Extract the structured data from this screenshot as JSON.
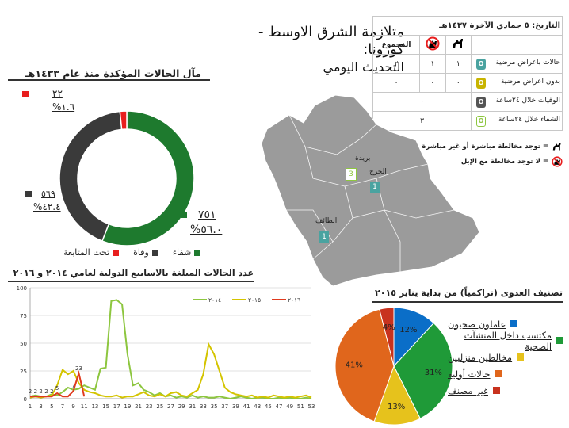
{
  "header": {
    "title_line1": "متلازمة الشرق الاوسط - كورونا:",
    "title_line2": "التحديث اليومي"
  },
  "donut": {
    "subtitle": "مآل الحالات المؤكدة منذ عام ١٤٣٣هـ",
    "annotations": {
      "monitoring": {
        "count": "٢٢",
        "pct": "%١.٦"
      },
      "death": {
        "count": "٥٦٩",
        "pct": "%٤٢.٤"
      },
      "recovered": {
        "count": "٧٥١",
        "pct": "%٥٦.٠"
      }
    },
    "legend": [
      "تحت المتابعة",
      "وفاة",
      "شفاء"
    ]
  },
  "summary_table": {
    "date_label": "التاريخ:  ٥ جمادي الآخرة ١٤٣٧هـ",
    "total_header": "المجموع",
    "camel_icon": "camel-icon",
    "no_camel_icon": "no-camel-icon",
    "rows": [
      {
        "label": "حالات باعراض مرضية",
        "camel": "١",
        "no_camel": "١",
        "total": "٢",
        "color": "#4aa3a0",
        "icon": "O"
      },
      {
        "label": "بدون اعراض مرضية",
        "camel": "٠",
        "no_camel": "٠",
        "total": "٠",
        "color": "#c8b400",
        "icon": "O"
      },
      {
        "label": "الوفيات خلال ٢٤ساعة",
        "merged": "٠",
        "color": "#555555",
        "icon": "O"
      },
      {
        "label": "الشفاء خلال ٢٤ساعة",
        "merged": "٣",
        "color": "#8dc63f",
        "icon": "O"
      }
    ],
    "key_camel": "= توجد مخالطة مباشرة أو غير مباشرة مع الإبل",
    "key_no_camel": "= لا توجد مخالطة مع الإبل"
  },
  "map": {
    "cities": [
      {
        "name": "بريدة",
        "count": "3",
        "color": "#8dc63f"
      },
      {
        "name": "الخرج",
        "count": "1",
        "color": "#4aa3a0"
      },
      {
        "name": "الطائف",
        "count": "1",
        "color": "#4aa3a0"
      }
    ]
  },
  "chart_data": [
    {
      "type": "pie",
      "title": "مآل الحالات المؤكدة منذ عام ١٤٣٣هـ",
      "categories": [
        "شفاء",
        "وفاة",
        "تحت المتابعة"
      ],
      "values": [
        751,
        569,
        22
      ],
      "percent": [
        56.0,
        42.4,
        1.6
      ],
      "colors": [
        "#1e7a2e",
        "#3a3a3a",
        "#e81e1e"
      ],
      "legend_position": "bottom"
    },
    {
      "type": "line",
      "title": "عدد الحالات المبلغة بالاسابيع الدولية لعامي ٢٠١٤ و ٢٠١٦",
      "x": [
        1,
        2,
        3,
        4,
        5,
        6,
        7,
        8,
        9,
        10,
        11,
        12,
        13,
        14,
        15,
        16,
        17,
        18,
        19,
        20,
        21,
        22,
        23,
        24,
        25,
        26,
        27,
        28,
        29,
        30,
        31,
        32,
        33,
        34,
        35,
        36,
        37,
        38,
        39,
        40,
        41,
        42,
        43,
        44,
        45,
        46,
        47,
        48,
        49,
        50,
        51,
        52,
        53
      ],
      "xticks": [
        1,
        3,
        5,
        7,
        9,
        11,
        13,
        15,
        17,
        19,
        21,
        23,
        25,
        27,
        29,
        31,
        33,
        35,
        37,
        39,
        41,
        43,
        45,
        47,
        49,
        51,
        53
      ],
      "ylim": [
        0,
        100
      ],
      "yticks": [
        0,
        25,
        50,
        75,
        100
      ],
      "legend_position": "top-right",
      "series": [
        {
          "name": "٢٠١٤",
          "color": "#8dc63f",
          "values": [
            2,
            3,
            2,
            2,
            4,
            3,
            6,
            10,
            8,
            9,
            12,
            10,
            8,
            27,
            28,
            88,
            89,
            85,
            40,
            12,
            14,
            8,
            6,
            3,
            5,
            2,
            3,
            1,
            2,
            1,
            3,
            1,
            2,
            1,
            1,
            2,
            1,
            0,
            1,
            2,
            1,
            0,
            1,
            1,
            0,
            0,
            1,
            0,
            1,
            0,
            0,
            1,
            0
          ]
        },
        {
          "name": "٢٠١٥",
          "color": "#d4c400",
          "values": [
            1,
            2,
            1,
            2,
            3,
            12,
            26,
            22,
            25,
            14,
            8,
            6,
            5,
            3,
            2,
            2,
            3,
            1,
            2,
            2,
            4,
            6,
            3,
            2,
            4,
            2,
            5,
            6,
            3,
            2,
            5,
            8,
            22,
            49,
            40,
            25,
            10,
            6,
            4,
            3,
            2,
            3,
            1,
            2,
            1,
            3,
            2,
            1,
            2,
            1,
            2,
            3,
            1
          ]
        },
        {
          "name": "٢٠١٦",
          "color": "#e03a1e",
          "values": [
            2,
            2,
            2,
            2,
            2,
            5,
            2,
            2,
            7,
            23,
            2,
            null,
            null,
            null,
            null,
            null,
            null,
            null,
            null,
            null,
            null,
            null,
            null,
            null,
            null,
            null,
            null,
            null,
            null,
            null,
            null,
            null,
            null,
            null,
            null,
            null,
            null,
            null,
            null,
            null,
            null,
            null,
            null,
            null,
            null,
            null,
            null,
            null,
            null,
            null,
            null,
            null,
            null
          ],
          "point_labels": [
            "2",
            "2",
            "2",
            "2",
            "2",
            "5",
            "",
            "",
            "7",
            "23",
            "",
            null,
            null,
            null,
            null,
            null,
            null,
            null,
            null,
            null,
            null,
            null,
            null,
            null,
            null,
            null,
            null,
            null,
            null,
            null,
            null,
            null,
            null,
            null,
            null,
            null,
            null,
            null,
            null,
            null,
            null,
            null,
            null,
            null,
            null,
            null,
            null,
            null,
            null,
            null,
            null,
            null,
            null
          ]
        }
      ]
    },
    {
      "type": "pie",
      "title": "تصنيف العدوى (تراكمياً) من بداية يناير ٢٠١٥",
      "categories": [
        "عاملون صحيون",
        "مكتسب داخل المنشآت الصحية",
        "مخالطين منزليين",
        "حالات أولية",
        "غير مصنف"
      ],
      "values": [
        12,
        31,
        13,
        41,
        4
      ],
      "labels": [
        "12%",
        "31%",
        "13%",
        "41%",
        "4%"
      ],
      "colors": [
        "#0a6ec8",
        "#1f9a38",
        "#e6c21c",
        "#e0661c",
        "#c8321e"
      ],
      "legend_position": "right"
    }
  ]
}
